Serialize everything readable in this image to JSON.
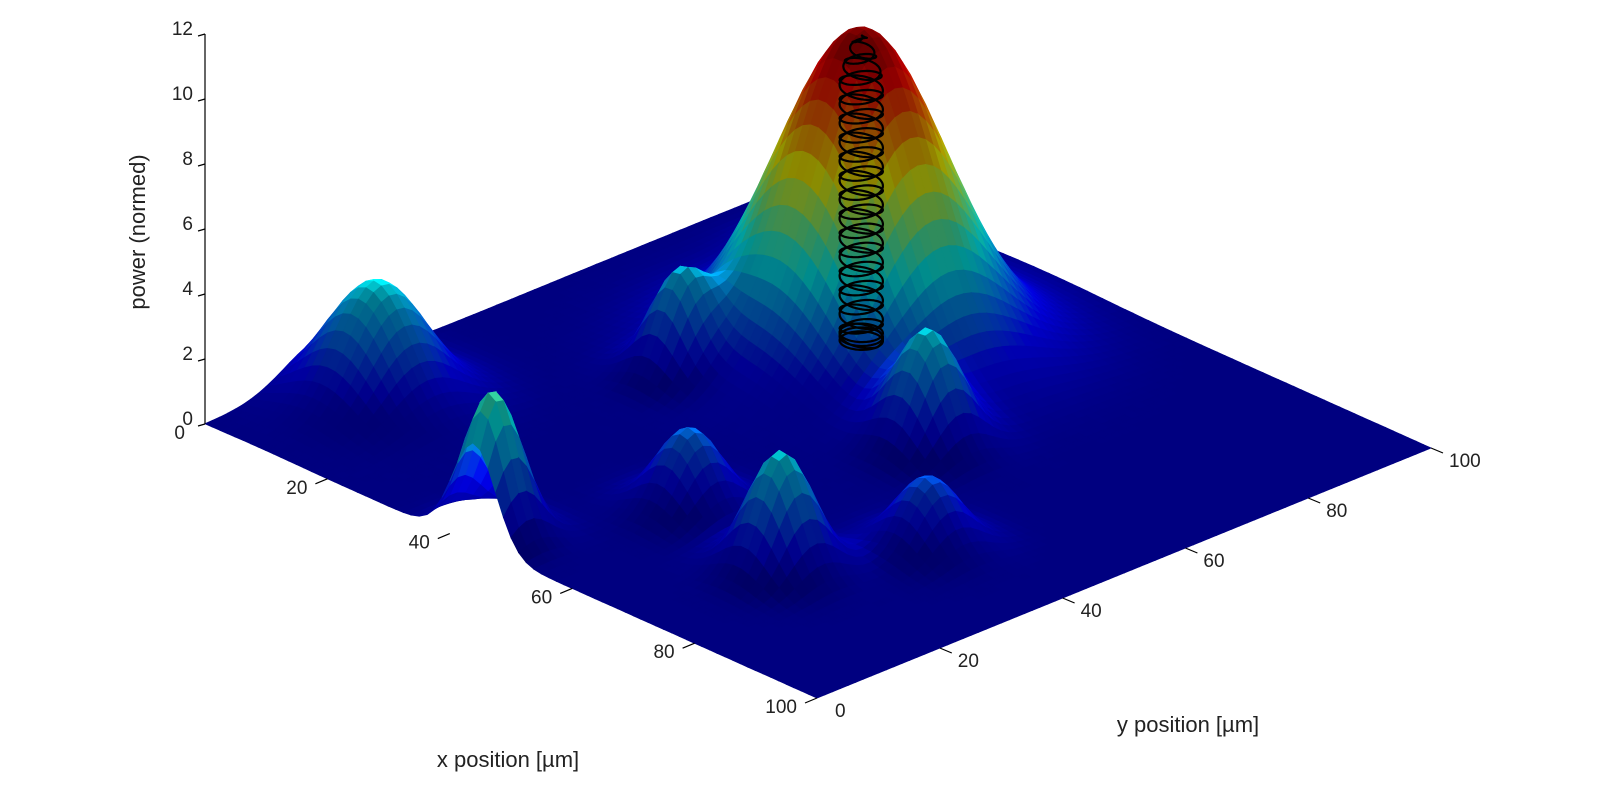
{
  "chart_data": {
    "type": "surface3d",
    "title": "",
    "xlabel": "x position [µm]",
    "ylabel": "y position  [µm]",
    "zlabel": "power (normed)",
    "xlim": [
      0,
      100
    ],
    "ylim": [
      0,
      100
    ],
    "zlim": [
      0,
      12
    ],
    "x_ticks": [
      0,
      20,
      40,
      60,
      80,
      100
    ],
    "y_ticks": [
      0,
      20,
      40,
      60,
      80,
      100
    ],
    "z_ticks": [
      0,
      2,
      4,
      6,
      8,
      10,
      12
    ],
    "x_tick_labels": [
      "0",
      "20",
      "40",
      "60",
      "80",
      "100"
    ],
    "y_tick_labels": [
      "0",
      "20",
      "40",
      "60",
      "80",
      "100"
    ],
    "z_tick_labels": [
      "0",
      "2",
      "4",
      "6",
      "8",
      "10",
      "12"
    ],
    "colormap": "jet",
    "grid": false,
    "peaks": [
      {
        "x": 37,
        "y": 70,
        "height": 9.9,
        "width": 10
      },
      {
        "x": 16,
        "y": 84,
        "height": 3.8,
        "width": 4.5
      },
      {
        "x": 28,
        "y": 49,
        "height": 2.6,
        "width": 3.5
      },
      {
        "x": 9,
        "y": 19,
        "height": 3.7,
        "width": 6
      },
      {
        "x": 61,
        "y": 57,
        "height": 3.4,
        "width": 4
      },
      {
        "x": 80,
        "y": 38,
        "height": 2.2,
        "width": 4
      },
      {
        "x": 73,
        "y": 21,
        "height": 3.7,
        "width": 4
      },
      {
        "x": 54,
        "y": 25,
        "height": 2.5,
        "width": 4
      },
      {
        "x": 44,
        "y": 3,
        "height": 4.5,
        "width": 3.5
      }
    ],
    "cage": {
      "type": "helical-wire-cage",
      "color": "#000000",
      "center_x": 37,
      "center_y": 70,
      "radius": 2.5,
      "z_min": 0.3,
      "z_max": 9.7,
      "turns": 16
    }
  }
}
